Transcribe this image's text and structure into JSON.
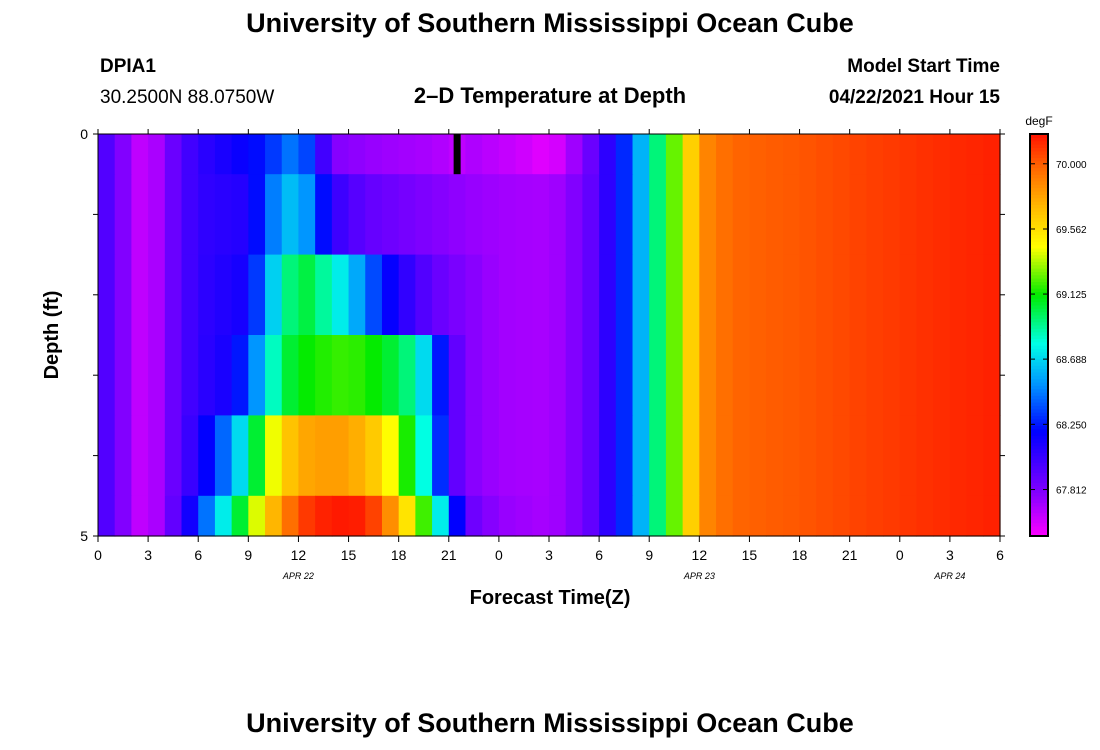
{
  "header": {
    "title_top": "University of Southern Mississippi Ocean Cube",
    "title_bottom": "University of Southern Mississippi Ocean Cube",
    "station_id": "DPIA1",
    "station_coords": "30.2500N  88.0750W",
    "model_start_label": "Model Start Time",
    "model_start_value": "04/22/2021 Hour 15"
  },
  "chart_data": {
    "type": "heatmap",
    "title": "2–D Temperature at Depth",
    "xlabel": "Forecast Time(Z)",
    "ylabel": "Depth (ft)",
    "x_tick_labels": [
      "0",
      "3",
      "6",
      "9",
      "12",
      "15",
      "18",
      "21",
      "0",
      "3",
      "6",
      "9",
      "12",
      "15",
      "18",
      "21",
      "0",
      "3",
      "6"
    ],
    "x_hours": [
      0,
      3,
      6,
      9,
      12,
      15,
      18,
      21,
      24,
      27,
      30,
      33,
      36,
      39,
      42,
      45,
      48,
      51,
      54
    ],
    "date_labels": [
      {
        "hour": 12,
        "text": "APR 22"
      },
      {
        "hour": 36,
        "text": "APR 23"
      },
      {
        "hour": 51,
        "text": "APR 24"
      }
    ],
    "y_tick_labels": [
      "0",
      "5"
    ],
    "ylim": [
      0,
      5
    ],
    "xlim": [
      0,
      54
    ],
    "colorbar": {
      "unit": "degF",
      "range": [
        67.5,
        70.2
      ],
      "tick_labels": [
        "70.000",
        "69.562",
        "69.125",
        "68.688",
        "68.250",
        "67.812"
      ],
      "tick_values": [
        70.0,
        69.562,
        69.125,
        68.688,
        68.25,
        67.812
      ]
    },
    "depth_layers": [
      {
        "depth_range": [
          0,
          0.5
        ],
        "keypoints": [
          [
            0,
            68.0
          ],
          [
            1,
            67.9
          ],
          [
            2,
            67.7
          ],
          [
            3,
            67.6
          ],
          [
            4,
            67.8
          ],
          [
            5,
            67.95
          ],
          [
            6,
            68.05
          ],
          [
            8,
            68.15
          ],
          [
            10,
            68.25
          ],
          [
            11,
            68.4
          ],
          [
            12,
            68.5
          ],
          [
            13,
            68.2
          ],
          [
            14,
            67.8
          ],
          [
            16,
            67.75
          ],
          [
            18,
            67.72
          ],
          [
            20,
            67.7
          ],
          [
            21.5,
            67.65
          ],
          [
            22,
            67.7
          ],
          [
            24,
            67.65
          ],
          [
            26,
            67.6
          ],
          [
            27,
            67.55
          ],
          [
            28,
            67.65
          ],
          [
            30,
            67.95
          ],
          [
            32,
            68.4
          ],
          [
            33,
            68.8
          ],
          [
            35,
            69.4
          ],
          [
            36,
            69.85
          ],
          [
            38,
            69.98
          ],
          [
            42,
            70.02
          ],
          [
            46,
            70.08
          ],
          [
            50,
            70.13
          ],
          [
            54,
            70.17
          ]
        ]
      },
      {
        "depth_range": [
          0.5,
          1.5
        ],
        "keypoints": [
          [
            0,
            68.0
          ],
          [
            1,
            67.9
          ],
          [
            2,
            67.7
          ],
          [
            3,
            67.6
          ],
          [
            4,
            67.8
          ],
          [
            5,
            67.95
          ],
          [
            6,
            68.05
          ],
          [
            9,
            68.1
          ],
          [
            10,
            68.35
          ],
          [
            11,
            68.6
          ],
          [
            12,
            68.65
          ],
          [
            13,
            68.4
          ],
          [
            14,
            68.05
          ],
          [
            16,
            67.9
          ],
          [
            18,
            67.85
          ],
          [
            20,
            67.8
          ],
          [
            22,
            67.75
          ],
          [
            24,
            67.72
          ],
          [
            27,
            67.7
          ],
          [
            28,
            67.75
          ],
          [
            30,
            67.95
          ],
          [
            32,
            68.4
          ],
          [
            33,
            68.8
          ],
          [
            35,
            69.4
          ],
          [
            36,
            69.85
          ],
          [
            38,
            69.98
          ],
          [
            42,
            70.02
          ],
          [
            46,
            70.08
          ],
          [
            50,
            70.13
          ],
          [
            54,
            70.17
          ]
        ]
      },
      {
        "depth_range": [
          1.5,
          2.5
        ],
        "keypoints": [
          [
            0,
            68.0
          ],
          [
            1,
            67.9
          ],
          [
            2,
            67.7
          ],
          [
            3,
            67.6
          ],
          [
            4,
            67.8
          ],
          [
            5,
            67.95
          ],
          [
            6,
            68.05
          ],
          [
            9,
            68.15
          ],
          [
            10,
            68.5
          ],
          [
            11,
            68.85
          ],
          [
            12,
            69.05
          ],
          [
            13,
            69.0
          ],
          [
            14,
            68.8
          ],
          [
            15,
            68.7
          ],
          [
            16,
            68.45
          ],
          [
            18,
            68.1
          ],
          [
            20,
            67.9
          ],
          [
            22,
            67.8
          ],
          [
            24,
            67.72
          ],
          [
            27,
            67.7
          ],
          [
            28,
            67.75
          ],
          [
            30,
            67.95
          ],
          [
            32,
            68.4
          ],
          [
            33,
            68.8
          ],
          [
            35,
            69.4
          ],
          [
            36,
            69.85
          ],
          [
            38,
            69.98
          ],
          [
            42,
            70.02
          ],
          [
            46,
            70.08
          ],
          [
            50,
            70.13
          ],
          [
            54,
            70.17
          ]
        ]
      },
      {
        "depth_range": [
          2.5,
          3.5
        ],
        "keypoints": [
          [
            0,
            68.0
          ],
          [
            1,
            67.9
          ],
          [
            2,
            67.7
          ],
          [
            3,
            67.6
          ],
          [
            4,
            67.8
          ],
          [
            5,
            67.95
          ],
          [
            6,
            68.05
          ],
          [
            8,
            68.15
          ],
          [
            9,
            68.35
          ],
          [
            10,
            68.7
          ],
          [
            11,
            69.0
          ],
          [
            12,
            69.1
          ],
          [
            13,
            69.15
          ],
          [
            15,
            69.2
          ],
          [
            17,
            69.1
          ],
          [
            19,
            68.9
          ],
          [
            20,
            68.5
          ],
          [
            21,
            68.0
          ],
          [
            22,
            67.8
          ],
          [
            24,
            67.72
          ],
          [
            27,
            67.7
          ],
          [
            28,
            67.75
          ],
          [
            30,
            67.95
          ],
          [
            32,
            68.4
          ],
          [
            33,
            68.8
          ],
          [
            35,
            69.4
          ],
          [
            36,
            69.85
          ],
          [
            38,
            69.98
          ],
          [
            42,
            70.02
          ],
          [
            46,
            70.08
          ],
          [
            50,
            70.13
          ],
          [
            54,
            70.17
          ]
        ]
      },
      {
        "depth_range": [
          3.5,
          4.5
        ],
        "keypoints": [
          [
            0,
            68.0
          ],
          [
            1,
            67.9
          ],
          [
            2,
            67.7
          ],
          [
            3,
            67.6
          ],
          [
            4,
            67.8
          ],
          [
            5,
            67.95
          ],
          [
            6,
            68.1
          ],
          [
            7,
            68.3
          ],
          [
            8,
            68.55
          ],
          [
            9,
            68.85
          ],
          [
            10,
            69.25
          ],
          [
            11,
            69.6
          ],
          [
            12,
            69.75
          ],
          [
            13,
            69.8
          ],
          [
            15,
            69.8
          ],
          [
            17,
            69.6
          ],
          [
            18,
            69.3
          ],
          [
            19,
            69.0
          ],
          [
            20,
            68.6
          ],
          [
            21,
            68.0
          ],
          [
            22,
            67.8
          ],
          [
            24,
            67.72
          ],
          [
            27,
            67.7
          ],
          [
            28,
            67.75
          ],
          [
            30,
            67.95
          ],
          [
            32,
            68.4
          ],
          [
            33,
            68.8
          ],
          [
            35,
            69.4
          ],
          [
            36,
            69.85
          ],
          [
            38,
            69.98
          ],
          [
            42,
            70.02
          ],
          [
            46,
            70.08
          ],
          [
            50,
            70.13
          ],
          [
            54,
            70.17
          ]
        ]
      },
      {
        "depth_range": [
          4.5,
          5.0
        ],
        "keypoints": [
          [
            0,
            68.0
          ],
          [
            1,
            67.9
          ],
          [
            2,
            67.7
          ],
          [
            3,
            67.6
          ],
          [
            4,
            67.8
          ],
          [
            5,
            68.0
          ],
          [
            6,
            68.3
          ],
          [
            7,
            68.6
          ],
          [
            8,
            68.9
          ],
          [
            9,
            69.2
          ],
          [
            10,
            69.6
          ],
          [
            11,
            69.85
          ],
          [
            12,
            70.05
          ],
          [
            13,
            70.15
          ],
          [
            15,
            70.2
          ],
          [
            16,
            70.15
          ],
          [
            17,
            70.0
          ],
          [
            18,
            69.7
          ],
          [
            19,
            69.4
          ],
          [
            20,
            69.0
          ],
          [
            21,
            68.5
          ],
          [
            22,
            67.9
          ],
          [
            24,
            67.75
          ],
          [
            27,
            67.7
          ],
          [
            28,
            67.75
          ],
          [
            30,
            67.95
          ],
          [
            32,
            68.4
          ],
          [
            33,
            68.8
          ],
          [
            35,
            69.4
          ],
          [
            36,
            69.85
          ],
          [
            38,
            69.98
          ],
          [
            42,
            70.02
          ],
          [
            46,
            70.08
          ],
          [
            50,
            70.13
          ],
          [
            54,
            70.17
          ]
        ]
      }
    ],
    "marker": {
      "hour": 21.5,
      "depth_range": [
        0,
        0.5
      ],
      "color": "#000000"
    },
    "grid": false
  }
}
